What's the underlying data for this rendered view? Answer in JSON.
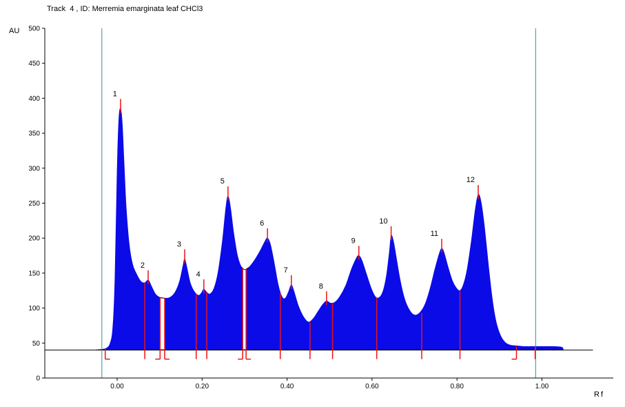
{
  "chart_data": {
    "type": "area",
    "title": "Track  4 , ID: Merremia emarginata leaf CHCl3",
    "xlabel": "Rf",
    "ylabel": "AU",
    "xlim": [
      -0.17,
      1.17
    ],
    "ylim": [
      0,
      500
    ],
    "grid": false,
    "x_ticks": [
      0.0,
      0.2,
      0.4,
      0.6,
      0.8,
      1.0
    ],
    "x_tick_labels": [
      "0.00",
      "0.20",
      "0.40",
      "0.60",
      "0.80",
      "1.00"
    ],
    "y_ticks": [
      0,
      50,
      100,
      150,
      200,
      250,
      300,
      350,
      400,
      450,
      500
    ],
    "baseline_au": 40,
    "baseline_end_rf": 1.12,
    "fill_color": "#0b0be8",
    "marker_color": "#ee1111",
    "limit_line_color": "#2f8f8f",
    "axis_color": "#000000",
    "track_limit_lines_rf": [
      -0.036,
      0.985
    ],
    "peaks": [
      {
        "label": "1",
        "rf": 0.008,
        "au": 385
      },
      {
        "label": "2",
        "rf": 0.073,
        "au": 140
      },
      {
        "label": "3",
        "rf": 0.159,
        "au": 170
      },
      {
        "label": "4",
        "rf": 0.204,
        "au": 127
      },
      {
        "label": "5",
        "rf": 0.261,
        "au": 260
      },
      {
        "label": "6",
        "rf": 0.354,
        "au": 200
      },
      {
        "label": "7",
        "rf": 0.41,
        "au": 133
      },
      {
        "label": "8",
        "rf": 0.493,
        "au": 110
      },
      {
        "label": "9",
        "rf": 0.569,
        "au": 175
      },
      {
        "label": "10",
        "rf": 0.645,
        "au": 203
      },
      {
        "label": "11",
        "rf": 0.764,
        "au": 185
      },
      {
        "label": "12",
        "rf": 0.85,
        "au": 262
      }
    ],
    "boundaries": [
      {
        "rf": -0.028,
        "au": 42,
        "foot": "right"
      },
      {
        "rf": 0.065,
        "au": 136,
        "foot": null
      },
      {
        "rf": 0.101,
        "au": 115,
        "foot": "left"
      },
      {
        "rf": 0.112,
        "au": 114,
        "foot": "right"
      },
      {
        "rf": 0.186,
        "au": 120,
        "foot": null
      },
      {
        "rf": 0.211,
        "au": 123,
        "foot": null
      },
      {
        "rf": 0.2955,
        "au": 157,
        "foot": "left"
      },
      {
        "rf": 0.3035,
        "au": 156,
        "foot": "right"
      },
      {
        "rf": 0.384,
        "au": 121,
        "foot": null
      },
      {
        "rf": 0.454,
        "au": 80,
        "foot": null
      },
      {
        "rf": 0.507,
        "au": 107,
        "foot": null
      },
      {
        "rf": 0.611,
        "au": 115,
        "foot": null
      },
      {
        "rf": 0.717,
        "au": 93,
        "foot": null
      },
      {
        "rf": 0.807,
        "au": 125,
        "foot": null
      },
      {
        "rf": 0.94,
        "au": 46,
        "foot": "left"
      },
      {
        "rf": 0.984,
        "au": 44,
        "foot": null
      }
    ],
    "gaps": [
      {
        "from": 0.1015,
        "to": 0.1115,
        "au": 115
      },
      {
        "from": 0.296,
        "to": 0.303,
        "au": 157
      }
    ],
    "outline_segments": [
      [
        0.092,
        0.122
      ],
      [
        0.286,
        0.313
      ]
    ],
    "curve": [
      [
        -0.05,
        40
      ],
      [
        -0.034,
        41
      ],
      [
        -0.024,
        43
      ],
      [
        -0.016,
        50
      ],
      [
        -0.01,
        72
      ],
      [
        -0.005,
        140
      ],
      [
        0.0,
        290
      ],
      [
        0.004,
        368
      ],
      [
        0.008,
        385
      ],
      [
        0.012,
        362
      ],
      [
        0.016,
        308
      ],
      [
        0.021,
        245
      ],
      [
        0.028,
        192
      ],
      [
        0.036,
        163
      ],
      [
        0.046,
        148
      ],
      [
        0.056,
        138
      ],
      [
        0.065,
        136
      ],
      [
        0.073,
        140
      ],
      [
        0.08,
        132
      ],
      [
        0.09,
        120
      ],
      [
        0.101,
        115
      ],
      [
        0.112,
        114
      ],
      [
        0.124,
        115
      ],
      [
        0.136,
        122
      ],
      [
        0.147,
        138
      ],
      [
        0.155,
        160
      ],
      [
        0.159,
        170
      ],
      [
        0.164,
        158
      ],
      [
        0.172,
        136
      ],
      [
        0.182,
        123
      ],
      [
        0.192,
        118
      ],
      [
        0.199,
        122
      ],
      [
        0.204,
        127
      ],
      [
        0.21,
        123
      ],
      [
        0.218,
        120
      ],
      [
        0.228,
        128
      ],
      [
        0.238,
        152
      ],
      [
        0.248,
        196
      ],
      [
        0.256,
        243
      ],
      [
        0.261,
        260
      ],
      [
        0.267,
        242
      ],
      [
        0.274,
        208
      ],
      [
        0.283,
        175
      ],
      [
        0.292,
        159
      ],
      [
        0.3,
        155
      ],
      [
        0.31,
        158
      ],
      [
        0.322,
        167
      ],
      [
        0.336,
        181
      ],
      [
        0.347,
        194
      ],
      [
        0.354,
        200
      ],
      [
        0.361,
        190
      ],
      [
        0.37,
        163
      ],
      [
        0.379,
        133
      ],
      [
        0.388,
        116
      ],
      [
        0.396,
        114
      ],
      [
        0.404,
        124
      ],
      [
        0.41,
        133
      ],
      [
        0.416,
        124
      ],
      [
        0.426,
        104
      ],
      [
        0.438,
        88
      ],
      [
        0.45,
        80
      ],
      [
        0.462,
        85
      ],
      [
        0.474,
        96
      ],
      [
        0.484,
        105
      ],
      [
        0.493,
        110
      ],
      [
        0.502,
        107
      ],
      [
        0.512,
        108
      ],
      [
        0.524,
        116
      ],
      [
        0.538,
        132
      ],
      [
        0.552,
        156
      ],
      [
        0.563,
        171
      ],
      [
        0.569,
        175
      ],
      [
        0.576,
        168
      ],
      [
        0.587,
        148
      ],
      [
        0.598,
        128
      ],
      [
        0.608,
        116
      ],
      [
        0.617,
        115
      ],
      [
        0.626,
        124
      ],
      [
        0.634,
        146
      ],
      [
        0.641,
        180
      ],
      [
        0.645,
        203
      ],
      [
        0.65,
        196
      ],
      [
        0.657,
        172
      ],
      [
        0.666,
        140
      ],
      [
        0.676,
        114
      ],
      [
        0.688,
        97
      ],
      [
        0.7,
        90
      ],
      [
        0.712,
        93
      ],
      [
        0.724,
        104
      ],
      [
        0.736,
        126
      ],
      [
        0.748,
        155
      ],
      [
        0.758,
        177
      ],
      [
        0.764,
        185
      ],
      [
        0.77,
        178
      ],
      [
        0.779,
        158
      ],
      [
        0.789,
        139
      ],
      [
        0.799,
        128
      ],
      [
        0.807,
        125
      ],
      [
        0.815,
        133
      ],
      [
        0.824,
        155
      ],
      [
        0.834,
        196
      ],
      [
        0.843,
        240
      ],
      [
        0.85,
        262
      ],
      [
        0.857,
        250
      ],
      [
        0.865,
        213
      ],
      [
        0.874,
        160
      ],
      [
        0.883,
        112
      ],
      [
        0.892,
        80
      ],
      [
        0.902,
        61
      ],
      [
        0.913,
        51
      ],
      [
        0.925,
        47
      ],
      [
        0.94,
        46
      ],
      [
        0.96,
        45
      ],
      [
        0.99,
        45
      ],
      [
        1.02,
        45
      ],
      [
        1.046,
        44
      ],
      [
        1.05,
        40
      ]
    ]
  }
}
